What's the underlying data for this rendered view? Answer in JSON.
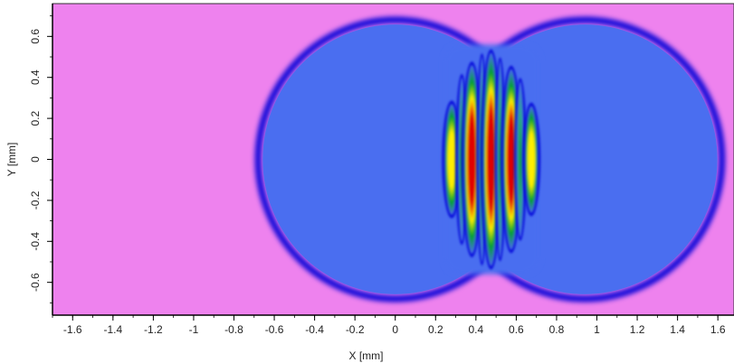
{
  "chart_data": {
    "type": "heatmap",
    "title": "",
    "xlabel": "X [mm]",
    "ylabel": "Y [mm]",
    "xlim": [
      -1.7,
      1.68
    ],
    "ylim": [
      -0.76,
      0.76
    ],
    "x_ticks": [
      -1.6,
      -1.4,
      -1.2,
      -1,
      -0.8,
      -0.6,
      -0.4,
      -0.2,
      0,
      0.2,
      0.4,
      0.6,
      0.8,
      1,
      1.2,
      1.4,
      1.6
    ],
    "x_tick_labels": [
      "-1.6",
      "-1.4",
      "-1.2",
      "-1",
      "-0.8",
      "-0.6",
      "-0.4",
      "-0.2",
      "0",
      "0.2",
      "0.4",
      "0.6",
      "0.8",
      "1",
      "1.2",
      "1.4",
      "1.6"
    ],
    "y_ticks": [
      0.6,
      0.4,
      0.2,
      0,
      -0.2,
      -0.4,
      -0.6
    ],
    "y_tick_labels": [
      "0.6",
      "0.4",
      "0.2",
      "0",
      "-0.2",
      "-0.4",
      "-0.6"
    ],
    "colors": {
      "background": "#ee82ee",
      "disk_fill": "#4a6ef0",
      "disk_edge": "#0000d8",
      "fringe_red": "#e00000",
      "fringe_yellow": "#ffee00",
      "fringe_green": "#00a030"
    },
    "disks": [
      {
        "name": "left",
        "cx": 0.0,
        "cy": 0.0,
        "r": 0.68
      },
      {
        "name": "right",
        "cx": 0.94,
        "cy": 0.0,
        "r": 0.68
      }
    ],
    "fringes": [
      {
        "x": 0.28,
        "half_width": 0.022,
        "half_height": 0.27,
        "peak": "yellow"
      },
      {
        "x": 0.33,
        "half_width": 0.012,
        "half_height": 0.4,
        "peak": "green"
      },
      {
        "x": 0.38,
        "half_width": 0.025,
        "half_height": 0.46,
        "peak": "red"
      },
      {
        "x": 0.43,
        "half_width": 0.01,
        "half_height": 0.5,
        "peak": "green"
      },
      {
        "x": 0.475,
        "half_width": 0.025,
        "half_height": 0.52,
        "peak": "red"
      },
      {
        "x": 0.52,
        "half_width": 0.01,
        "half_height": 0.48,
        "peak": "green"
      },
      {
        "x": 0.575,
        "half_width": 0.025,
        "half_height": 0.44,
        "peak": "red"
      },
      {
        "x": 0.62,
        "half_width": 0.012,
        "half_height": 0.38,
        "peak": "green"
      },
      {
        "x": 0.675,
        "half_width": 0.02,
        "half_height": 0.26,
        "peak": "yellow"
      }
    ]
  }
}
